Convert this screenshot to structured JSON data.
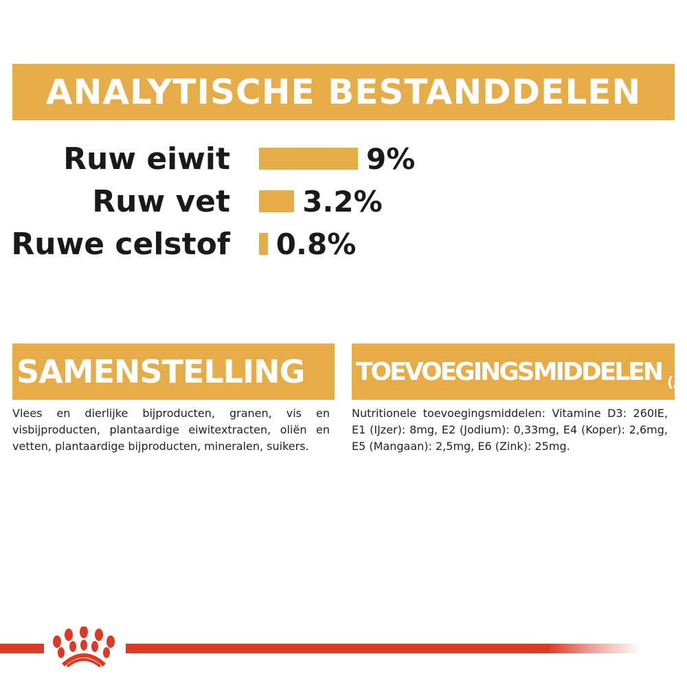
{
  "analytical": {
    "title": "ANALYTISCHE BESTANDDELEN",
    "items": [
      {
        "label": "Ruw eiwit",
        "value": "9%",
        "percent": 9
      },
      {
        "label": "Ruw vet",
        "value": "3.2%",
        "percent": 3.2
      },
      {
        "label": "Ruwe celstof",
        "value": "0.8%",
        "percent": 0.8
      }
    ]
  },
  "composition": {
    "title": "SAMENSTELLING",
    "text": "Vlees en dierlijke bijproducten, granen, vis en visbijproducten, plantaardige eiwitextracten, oliën en vetten, plantaardige bijproducten, mineralen, suikers."
  },
  "additives": {
    "title": "TOEVOEGINGSMIDDELEN",
    "unit": "(/kg)",
    "text": "Nutritionele toevoegingsmiddelen: Vitamine D3: 260IE, E1 (IJzer): 8mg, E2 (Jodium): 0,33mg, E4 (Koper): 2,6mg, E5 (Mangaan): 2,5mg, E6 (Zink): 25mg."
  },
  "colors": {
    "accent": "#E5AC48",
    "brand_red": "#DD3A24"
  }
}
